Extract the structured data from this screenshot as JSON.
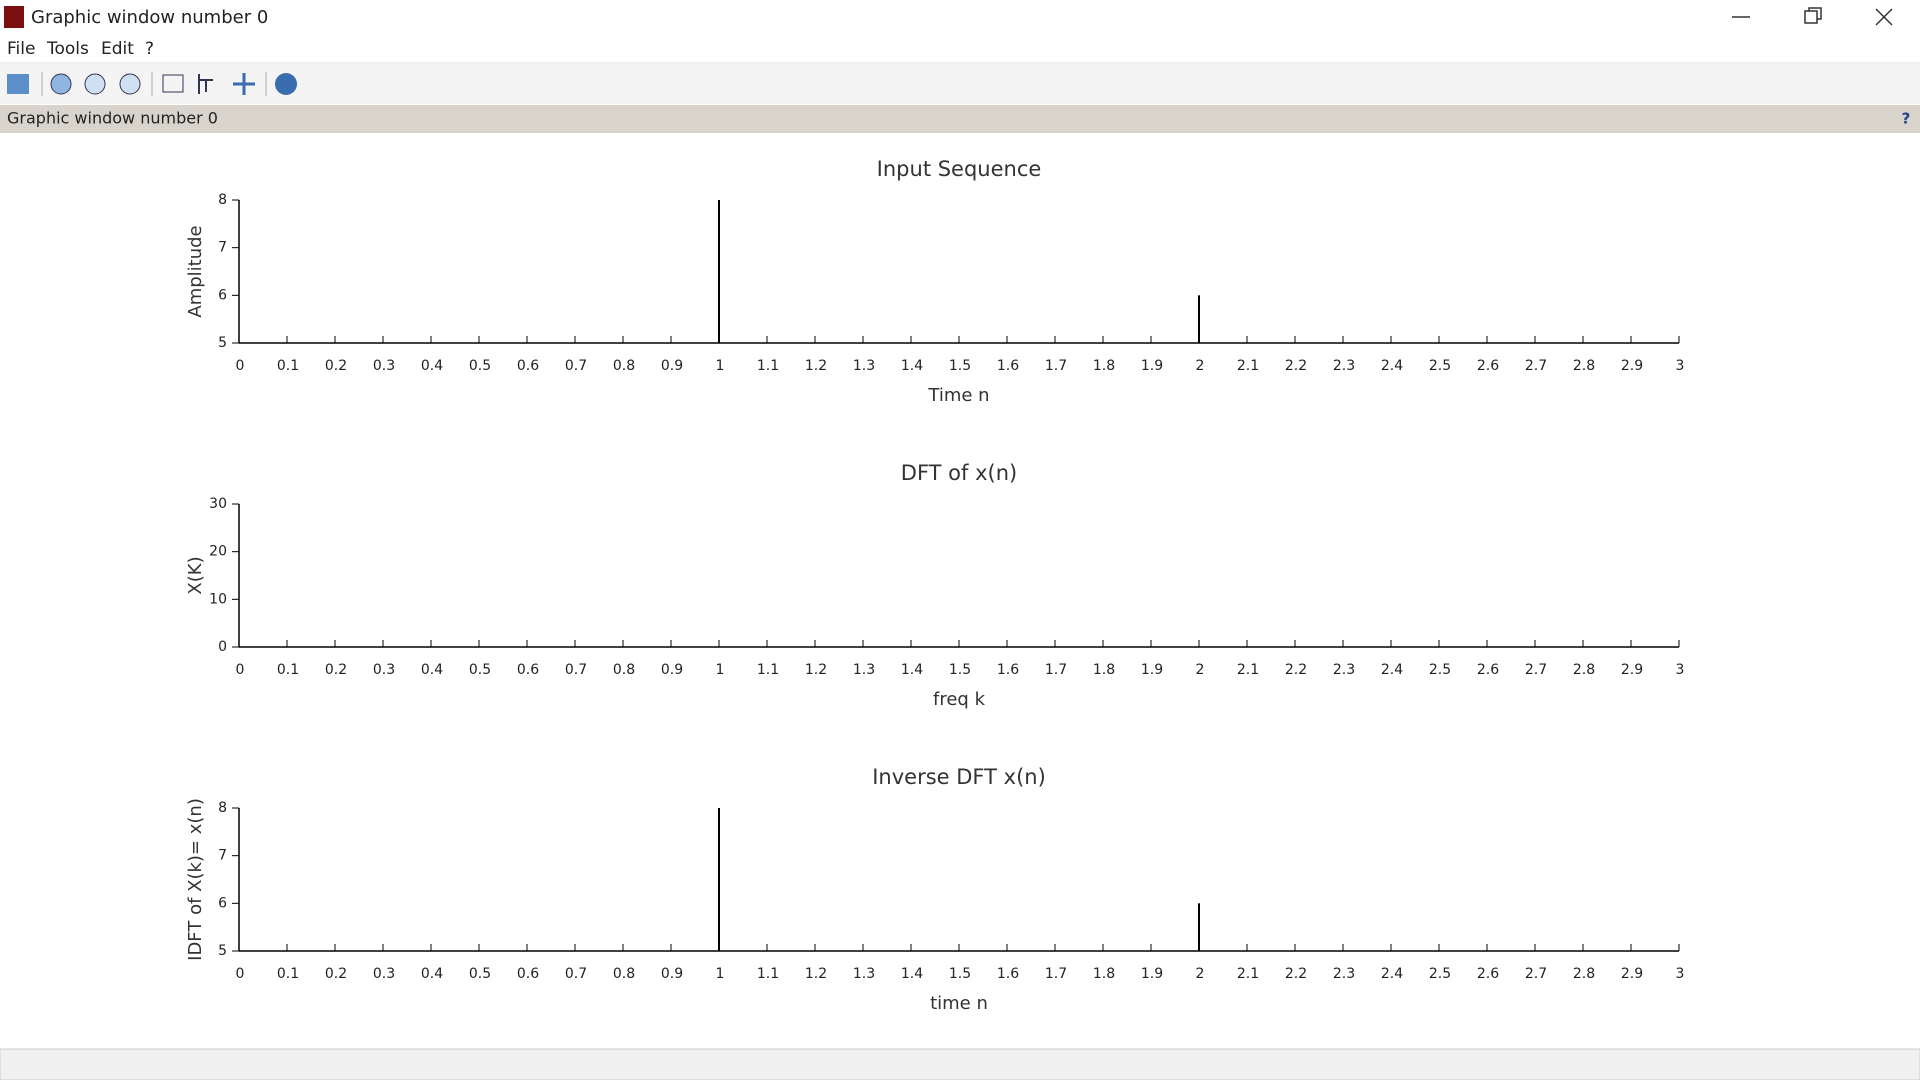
{
  "window": {
    "title": "Graphic window number 0",
    "menu": [
      "File",
      "Tools",
      "Edit",
      "?"
    ],
    "header": "Graphic window number 0",
    "header_help": "?"
  },
  "chart_data": [
    {
      "type": "stem",
      "title": "Input Sequence",
      "xlabel": "Time n",
      "ylabel": "Amplitude",
      "color": "#000000",
      "x": [
        1,
        2
      ],
      "values": [
        8,
        6
      ],
      "xlim": [
        0,
        3
      ],
      "ylim": [
        5,
        8
      ],
      "xticks": [
        0,
        0.1,
        0.2,
        0.3,
        0.4,
        0.5,
        0.6,
        0.7,
        0.8,
        0.9,
        1,
        1.1,
        1.2,
        1.3,
        1.4,
        1.5,
        1.6,
        1.7,
        1.8,
        1.9,
        2,
        2.1,
        2.2,
        2.3,
        2.4,
        2.5,
        2.6,
        2.7,
        2.8,
        2.9,
        3
      ],
      "yticks": [
        5,
        6,
        7,
        8
      ]
    },
    {
      "type": "stem",
      "title": "DFT of x(n)",
      "xlabel": "freq k",
      "ylabel": "X(K)",
      "color": "#000000",
      "xlim": [
        0,
        3
      ],
      "ylim": [
        0,
        30
      ],
      "xticks": [
        0,
        0.1,
        0.2,
        0.3,
        0.4,
        0.5,
        0.6,
        0.7,
        0.8,
        0.9,
        1,
        1.1,
        1.2,
        1.3,
        1.4,
        1.5,
        1.6,
        1.7,
        1.8,
        1.9,
        2,
        2.1,
        2.2,
        2.3,
        2.4,
        2.5,
        2.6,
        2.7,
        2.8,
        2.9,
        3
      ],
      "yticks": [
        0,
        10,
        20,
        30
      ]
    },
    {
      "type": "stem",
      "title": "Inverse DFT x(n)",
      "xlabel": "time n",
      "ylabel": "IDFT of X(k)= x(n)",
      "color": "#000000",
      "x": [
        1,
        2
      ],
      "values": [
        8,
        6
      ],
      "xlim": [
        0,
        3
      ],
      "ylim": [
        5,
        8
      ],
      "xticks": [
        0,
        0.1,
        0.2,
        0.3,
        0.4,
        0.5,
        0.6,
        0.7,
        0.8,
        0.9,
        1,
        1.1,
        1.2,
        1.3,
        1.4,
        1.5,
        1.6,
        1.7,
        1.8,
        1.9,
        2,
        2.1,
        2.2,
        2.3,
        2.4,
        2.5,
        2.6,
        2.7,
        2.8,
        2.9,
        3
      ],
      "yticks": [
        5,
        6,
        7,
        8
      ]
    }
  ]
}
